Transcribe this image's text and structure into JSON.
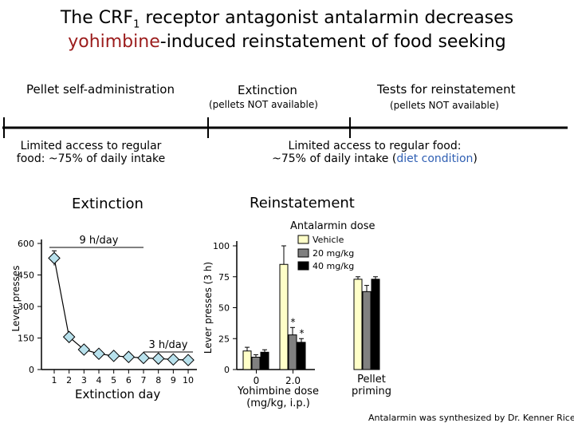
{
  "header": {
    "title_line1": "The CRF",
    "title_sub": "1",
    "title_line1_rest": " receptor antagonist antalarmin decreases",
    "title_line2_red": "yohimbine",
    "title_line2_rest": "-induced reinstatement of food seeking"
  },
  "timeline": {
    "phase1": "Pellet self-administration",
    "phase2": "Extinction",
    "phase2_note": "(pellets NOT available)",
    "phase3": "Tests for reinstatement",
    "phase3_note": "(pellets NOT available)",
    "cond_left_1": "Limited access to regular",
    "cond_left_2": "food: ~75% of daily intake",
    "cond_right_1": "Limited access to regular food:",
    "cond_right_2a": "~75% of daily intake (",
    "cond_right_2b": "diet condition",
    "cond_right_2c": ")"
  },
  "colors": {
    "title_red": "#9b1c1c",
    "diet_blue": "#2f5fb3",
    "marker_fill": "#b8e1ec",
    "vehicle": "#ffffc8",
    "mg20": "#808080",
    "mg40": "#000000"
  },
  "chart_data": [
    {
      "type": "line",
      "title": "Extinction",
      "xlabel": "Extinction day",
      "ylabel": "Lever presses",
      "x": [
        1,
        2,
        3,
        4,
        5,
        6,
        7,
        8,
        9,
        10
      ],
      "series": [
        {
          "values": [
            530,
            155,
            95,
            75,
            65,
            60,
            55,
            52,
            48,
            45
          ],
          "errors": [
            35,
            12,
            8,
            6,
            5,
            5,
            5,
            4,
            4,
            4
          ]
        }
      ],
      "ylim": [
        0,
        600
      ],
      "yticks": [
        0,
        150,
        300,
        450,
        600
      ],
      "annotations": [
        "9 h/day",
        "3 h/day"
      ]
    },
    {
      "type": "bar",
      "title": "Reinstatement",
      "xlabel_1": "Yohimbine dose",
      "xlabel_2": "(mg/kg, i.p.)",
      "ylabel": "Lever presses (3 h)",
      "legend_title": "Antalarmin dose",
      "categories": [
        "0",
        "2.0",
        "Pellet priming"
      ],
      "category_label_pellet_1": "Pellet",
      "category_label_pellet_2": "priming",
      "series": [
        {
          "name": "Vehicle",
          "values": [
            15,
            85,
            73
          ],
          "errors": [
            3,
            15,
            2
          ]
        },
        {
          "name": "20 mg/kg",
          "values": [
            10,
            28,
            63
          ],
          "errors": [
            2,
            6,
            5
          ]
        },
        {
          "name": "40 mg/kg",
          "values": [
            14,
            22,
            73
          ],
          "errors": [
            2,
            3,
            2
          ]
        }
      ],
      "ylim": [
        0,
        100
      ],
      "yticks": [
        0,
        25,
        50,
        75,
        100
      ],
      "significance": [
        "*",
        "*"
      ]
    }
  ],
  "footnote": "Antalarmin was synthesized by Dr. Kenner Rice"
}
